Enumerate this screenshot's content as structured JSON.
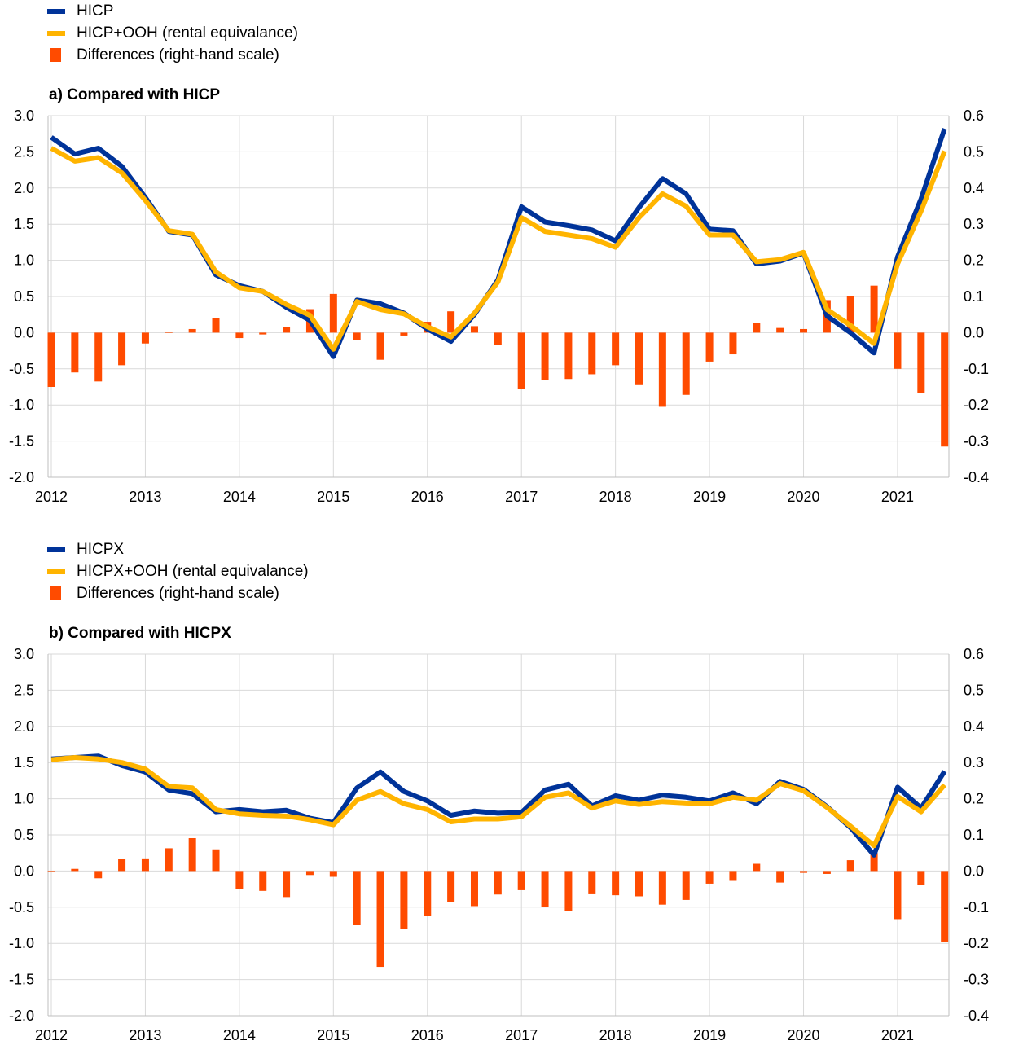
{
  "colors": {
    "line_main": "#003399",
    "line_ooh": "#FFB400",
    "bars": "#FF4B00",
    "grid": "#d9d9d9",
    "axis": "#bfbfbf"
  },
  "chart_data": [
    {
      "type": "line",
      "title": "a) Compared with HICP",
      "legend_placement": "top-left",
      "grid": true,
      "x_tick_labels": [
        "2012",
        "2013",
        "2014",
        "2015",
        "2016",
        "2017",
        "2018",
        "2019",
        "2020",
        "2021"
      ],
      "x_quarter_index": [
        0,
        1,
        2,
        3,
        4,
        5,
        6,
        7,
        8,
        9,
        10,
        11,
        12,
        13,
        14,
        15,
        16,
        17,
        18,
        19,
        20,
        21,
        22,
        23,
        24,
        25,
        26,
        27,
        28,
        29,
        30,
        31,
        32,
        33,
        34,
        35,
        36,
        37,
        38
      ],
      "ylim": [
        -2.0,
        3.0
      ],
      "y_ticks": [
        "3.0",
        "2.5",
        "2.0",
        "1.5",
        "1.0",
        "0.5",
        "0.0",
        "-0.5",
        "-1.0",
        "-1.5",
        "-2.0"
      ],
      "y2lim": [
        -0.4,
        0.6
      ],
      "y2_ticks": [
        "0.6",
        "0.5",
        "0.4",
        "0.3",
        "0.2",
        "0.1",
        "0.0",
        "-0.1",
        "-0.2",
        "-0.3",
        "-0.4"
      ],
      "series": [
        {
          "name": "HICP",
          "kind": "line",
          "axis": "left",
          "values": [
            2.7,
            2.47,
            2.55,
            2.3,
            1.87,
            1.4,
            1.35,
            0.8,
            0.65,
            0.57,
            0.35,
            0.17,
            -0.33,
            0.45,
            0.4,
            0.27,
            0.05,
            -0.12,
            0.25,
            0.73,
            1.74,
            1.53,
            1.48,
            1.42,
            1.27,
            1.73,
            2.13,
            1.92,
            1.43,
            1.41,
            0.95,
            0.99,
            1.1,
            0.23,
            0.0,
            -0.28,
            1.05,
            1.85,
            2.82
          ]
        },
        {
          "name": "HICP+OOH (rental equivalance)",
          "kind": "line",
          "axis": "left",
          "values": [
            2.55,
            2.37,
            2.42,
            2.21,
            1.83,
            1.41,
            1.36,
            0.84,
            0.62,
            0.57,
            0.39,
            0.24,
            -0.23,
            0.43,
            0.32,
            0.26,
            0.08,
            -0.06,
            0.27,
            0.7,
            1.59,
            1.4,
            1.35,
            1.3,
            1.18,
            1.59,
            1.92,
            1.75,
            1.35,
            1.35,
            0.98,
            1.01,
            1.11,
            0.32,
            0.1,
            -0.15,
            0.95,
            1.68,
            2.51
          ]
        },
        {
          "name": "Differences (right-hand scale)",
          "kind": "bar",
          "axis": "right",
          "values": [
            -0.15,
            -0.11,
            -0.135,
            -0.09,
            -0.03,
            0.0,
            0.01,
            0.04,
            -0.015,
            -0.005,
            0.015,
            0.065,
            0.107,
            -0.02,
            -0.075,
            -0.008,
            0.03,
            0.059,
            0.018,
            -0.035,
            -0.155,
            -0.13,
            -0.128,
            -0.115,
            -0.09,
            -0.145,
            -0.205,
            -0.172,
            -0.08,
            -0.06,
            0.026,
            0.013,
            0.01,
            0.09,
            0.102,
            0.13,
            -0.1,
            -0.168,
            -0.315
          ]
        }
      ]
    },
    {
      "type": "line",
      "title": "b) Compared with HICPX",
      "legend_placement": "top-left",
      "grid": true,
      "x_tick_labels": [
        "2012",
        "2013",
        "2014",
        "2015",
        "2016",
        "2017",
        "2018",
        "2019",
        "2020",
        "2021"
      ],
      "x_quarter_index": [
        0,
        1,
        2,
        3,
        4,
        5,
        6,
        7,
        8,
        9,
        10,
        11,
        12,
        13,
        14,
        15,
        16,
        17,
        18,
        19,
        20,
        21,
        22,
        23,
        24,
        25,
        26,
        27,
        28,
        29,
        30,
        31,
        32,
        33,
        34,
        35,
        36,
        37,
        38
      ],
      "ylim": [
        -2.0,
        3.0
      ],
      "y_ticks": [
        "3.0",
        "2.5",
        "2.0",
        "1.5",
        "1.0",
        "0.5",
        "0.0",
        "-0.5",
        "-1.0",
        "-1.5",
        "-2.0"
      ],
      "y2lim": [
        -0.4,
        0.6
      ],
      "y2_ticks": [
        "0.6",
        "0.5",
        "0.4",
        "0.3",
        "0.2",
        "0.1",
        "0.0",
        "-0.1",
        "-0.2",
        "-0.3",
        "-0.4"
      ],
      "series": [
        {
          "name": "HICPX",
          "kind": "line",
          "axis": "left",
          "values": [
            1.55,
            1.57,
            1.59,
            1.46,
            1.37,
            1.12,
            1.07,
            0.82,
            0.85,
            0.82,
            0.84,
            0.73,
            0.67,
            1.15,
            1.37,
            1.1,
            0.97,
            0.77,
            0.83,
            0.8,
            0.81,
            1.12,
            1.2,
            0.9,
            1.04,
            0.98,
            1.05,
            1.02,
            0.97,
            1.08,
            0.93,
            1.24,
            1.13,
            0.89,
            0.6,
            0.22,
            1.16,
            0.87,
            1.38
          ]
        },
        {
          "name": "HICPX+OOH (rental equivalance)",
          "kind": "line",
          "axis": "left",
          "values": [
            1.54,
            1.57,
            1.55,
            1.5,
            1.41,
            1.17,
            1.15,
            0.85,
            0.79,
            0.77,
            0.76,
            0.71,
            0.64,
            0.98,
            1.1,
            0.93,
            0.85,
            0.68,
            0.72,
            0.72,
            0.75,
            1.02,
            1.08,
            0.87,
            0.97,
            0.92,
            0.96,
            0.94,
            0.93,
            1.02,
            0.98,
            1.21,
            1.11,
            0.88,
            0.62,
            0.35,
            1.03,
            0.82,
            1.19
          ]
        },
        {
          "name": "Differences (right-hand scale)",
          "kind": "bar",
          "axis": "right",
          "values": [
            0.0,
            0.006,
            -0.02,
            0.033,
            0.035,
            0.063,
            0.091,
            0.06,
            -0.05,
            -0.055,
            -0.072,
            -0.011,
            -0.016,
            -0.15,
            -0.265,
            -0.16,
            -0.125,
            -0.085,
            -0.097,
            -0.065,
            -0.053,
            -0.1,
            -0.11,
            -0.062,
            -0.067,
            -0.07,
            -0.093,
            -0.08,
            -0.035,
            -0.025,
            0.02,
            -0.032,
            -0.005,
            -0.008,
            0.03,
            0.05,
            -0.133,
            -0.038,
            -0.195
          ]
        }
      ]
    }
  ]
}
